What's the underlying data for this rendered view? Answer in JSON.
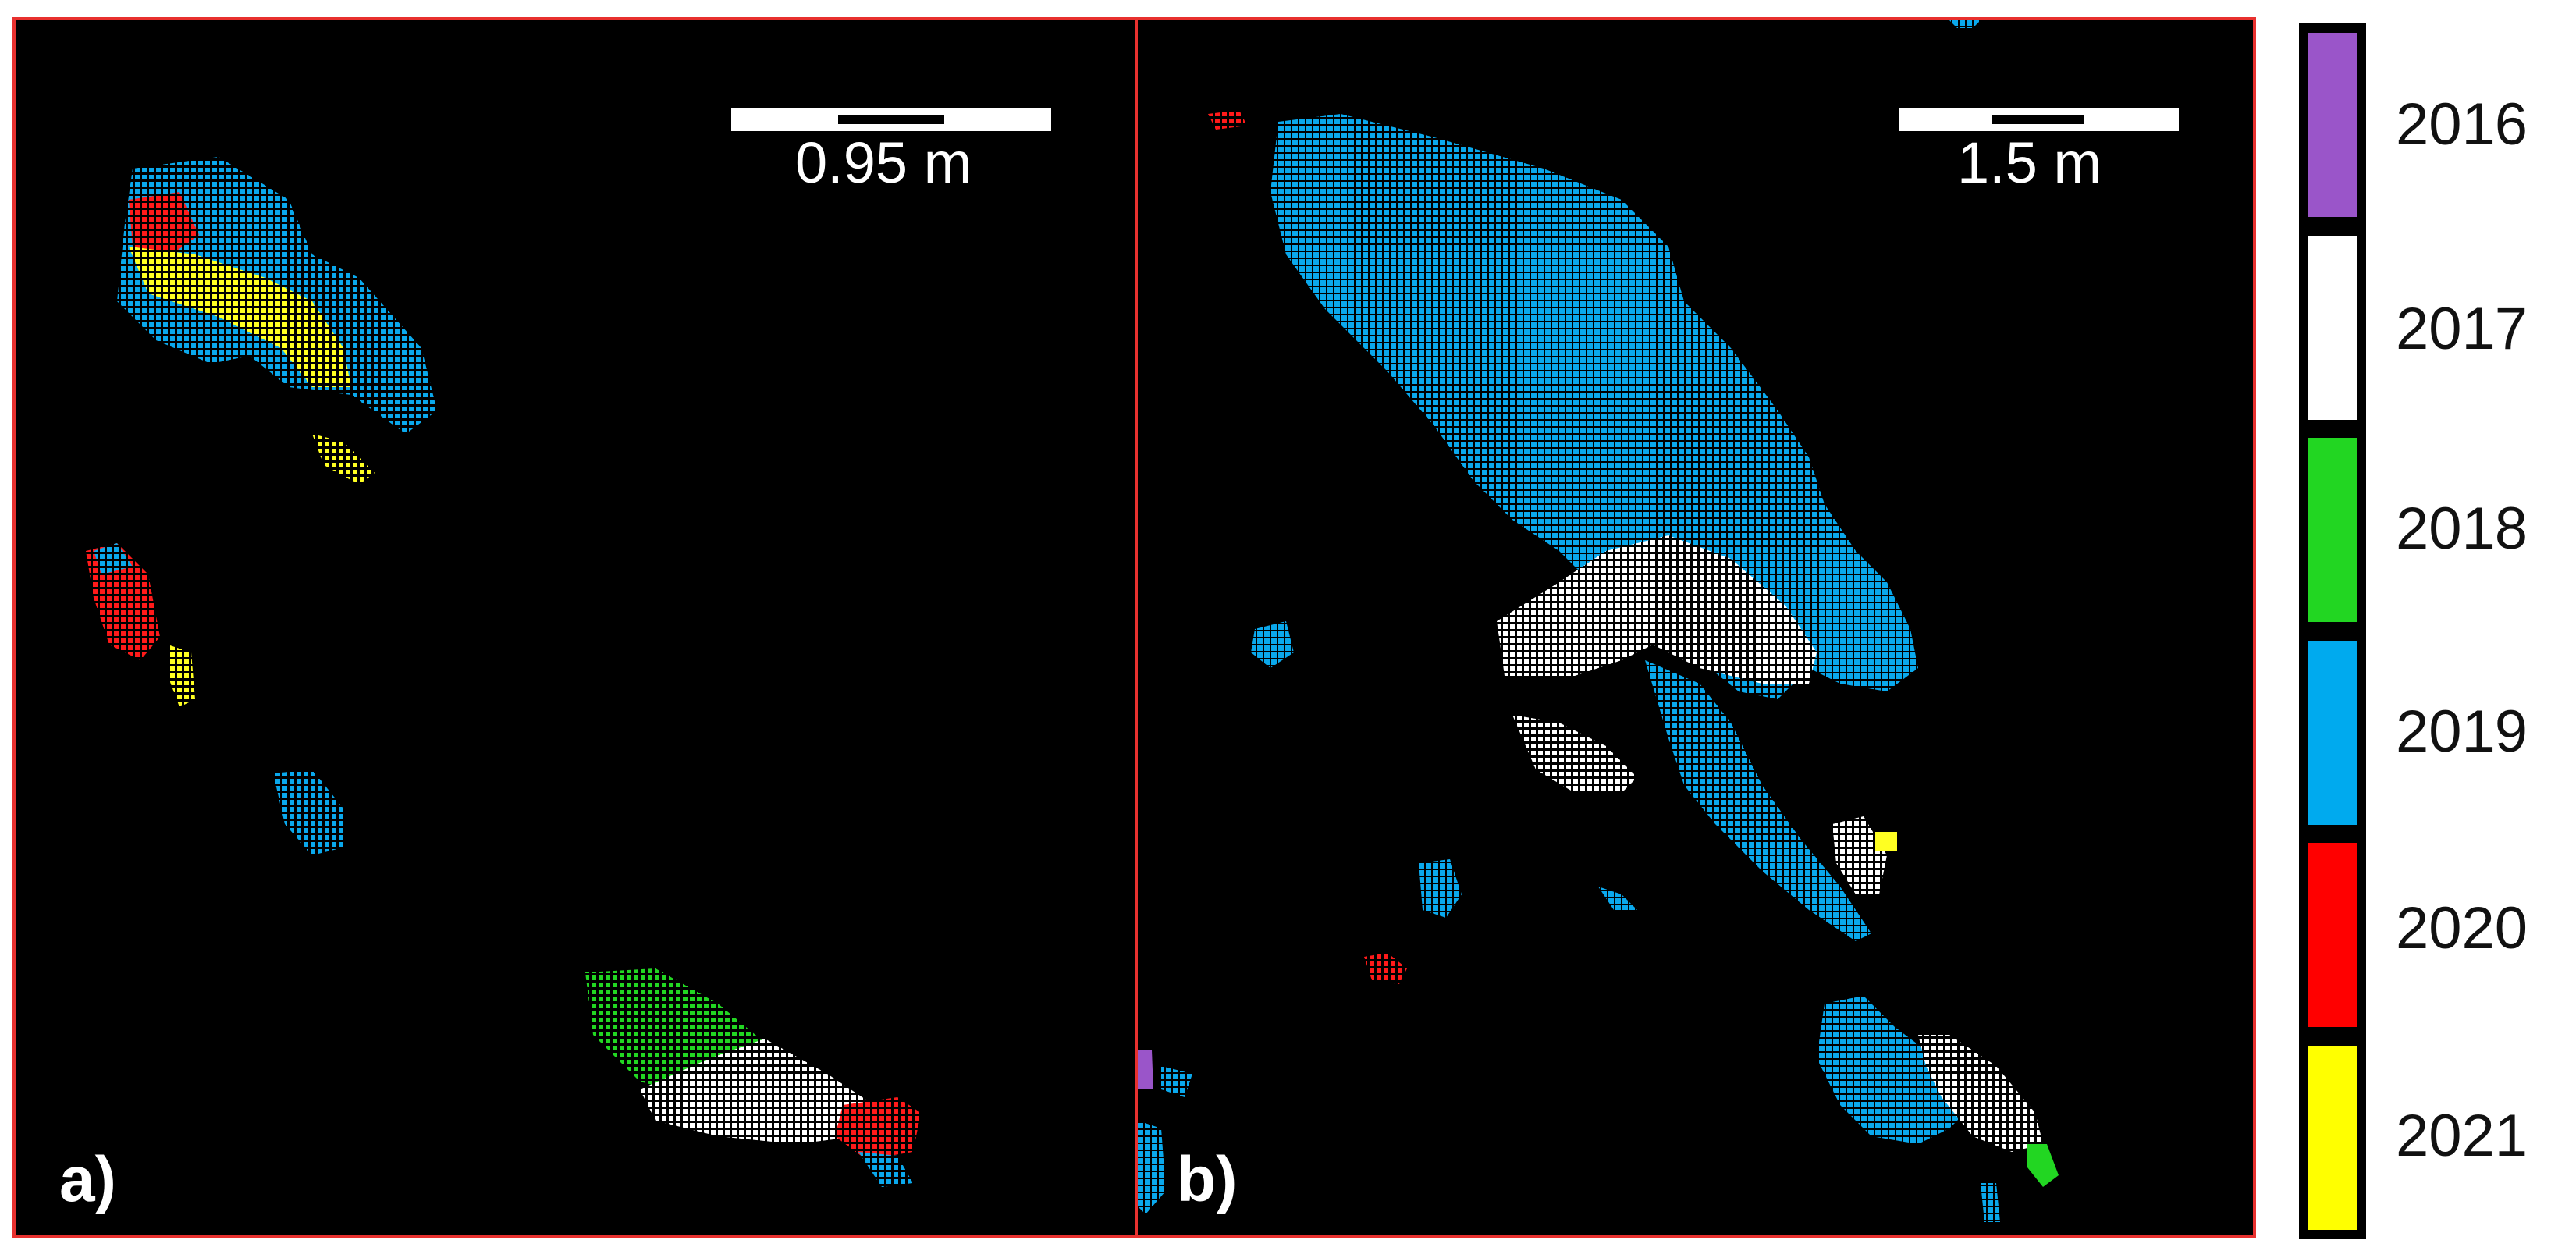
{
  "panels": [
    {
      "letter": "a)",
      "scale_label": "0.95 m"
    },
    {
      "letter": "b)",
      "scale_label": "1.5 m"
    }
  ],
  "legend": {
    "items": [
      {
        "label": "2016",
        "color": "#9a55c9"
      },
      {
        "label": "2017",
        "color": "#ffffff"
      },
      {
        "label": "2018",
        "color": "#22d622"
      },
      {
        "label": "2019",
        "color": "#00aaee"
      },
      {
        "label": "2020",
        "color": "#ff0000"
      },
      {
        "label": "2021",
        "color": "#ffff00"
      }
    ]
  }
}
